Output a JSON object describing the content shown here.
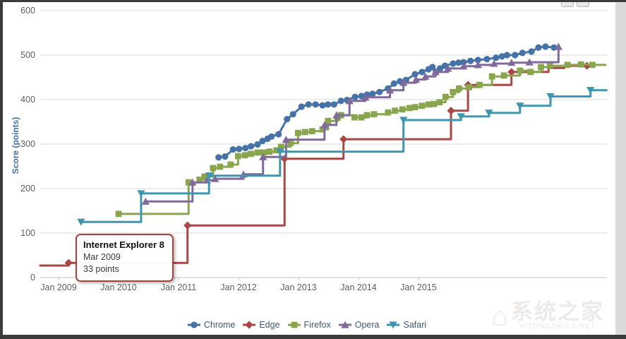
{
  "window": {
    "buttons": [
      {
        "name": "print-button"
      },
      {
        "name": "export-button"
      }
    ]
  },
  "tooltip": {
    "title": "Internet Explorer 8",
    "date_line": "Mar 2009",
    "points_line": "33 points"
  },
  "watermark": {
    "text": "系统之家",
    "subtext": "XITONGZHIJIA.NET",
    "house_icon": "house-icon"
  },
  "chart_data": {
    "type": "line",
    "title": "",
    "xlabel": "",
    "ylabel": "Score (points)",
    "ylim": [
      0,
      600
    ],
    "y_ticks": [
      600,
      500,
      400,
      300,
      200,
      100,
      0
    ],
    "x_tick_labels": [
      "Jan 2009",
      "Jan 2010",
      "Jan 2011",
      "Jan 2012",
      "Jan 2013",
      "Jan 2014",
      "Jan 2015"
    ],
    "x_unit": "months since Jan 2009 (12 per labeled tick)",
    "grid": true,
    "legend_position": "bottom-center",
    "colors": {
      "chrome": "#4572A7",
      "edge": "#AA4643",
      "firefox": "#89A54E",
      "opera": "#80699B",
      "safari": "#3D96AE",
      "grid": "#d8d8d8",
      "axis": "#c0c0c0",
      "legend_text": "#3E576F",
      "axis_title": "#4572A7"
    },
    "series": [
      {
        "name": "Chrome",
        "color": "#4572A7",
        "marker": "circle",
        "step": false,
        "points": [
          [
            32,
            270
          ],
          [
            33.3,
            272
          ],
          [
            34.9,
            288
          ],
          [
            36.1,
            289
          ],
          [
            37.4,
            291
          ],
          [
            38.5,
            295
          ],
          [
            39.8,
            299
          ],
          [
            40.8,
            307
          ],
          [
            41.8,
            312
          ],
          [
            42.6,
            317
          ],
          [
            44,
            322
          ],
          [
            45.7,
            356
          ],
          [
            46.9,
            367
          ],
          [
            48.6,
            384
          ],
          [
            50,
            389
          ],
          [
            51.4,
            389
          ],
          [
            52.8,
            387
          ],
          [
            53.9,
            389
          ],
          [
            55.1,
            389
          ],
          [
            56.5,
            397
          ],
          [
            57.7,
            399
          ],
          [
            59.3,
            406
          ],
          [
            60.6,
            408
          ],
          [
            61.7,
            411
          ],
          [
            62.8,
            413
          ],
          [
            64.2,
            417
          ],
          [
            65.9,
            425
          ],
          [
            67.1,
            436
          ],
          [
            68.3,
            441
          ],
          [
            69.5,
            444
          ],
          [
            71.3,
            457
          ],
          [
            72.7,
            462
          ],
          [
            74,
            468
          ],
          [
            74.8,
            473
          ],
          [
            75.5,
            462
          ],
          [
            76.3,
            470
          ],
          [
            77.3,
            476
          ],
          [
            78.9,
            481
          ],
          [
            80,
            483
          ],
          [
            81,
            484
          ],
          [
            82.4,
            487
          ],
          [
            83.9,
            489
          ],
          [
            85.7,
            491
          ],
          [
            87.5,
            494
          ],
          [
            88.7,
            497
          ],
          [
            89.7,
            500
          ],
          [
            91.3,
            500
          ],
          [
            92.8,
            505
          ],
          [
            94.6,
            508
          ],
          [
            96,
            517
          ],
          [
            97.4,
            519
          ],
          [
            99.1,
            517
          ]
        ]
      },
      {
        "name": "Edge",
        "color": "#AA4643",
        "marker": "diamond",
        "step": true,
        "points": [
          [
            -3.67,
            27,
            0
          ],
          [
            2,
            33
          ],
          [
            25.8,
            117
          ],
          [
            45.2,
            267
          ],
          [
            57,
            311
          ],
          [
            78.5,
            375
          ],
          [
            81.9,
            433
          ],
          [
            90.6,
            462
          ],
          [
            98,
            471,
            0
          ],
          [
            101.2,
            476,
            0
          ],
          [
            105.7,
            476
          ]
        ]
      },
      {
        "name": "Firefox",
        "color": "#89A54E",
        "marker": "square",
        "step": true,
        "points": [
          [
            12,
            143
          ],
          [
            26,
            214
          ],
          [
            28.2,
            220
          ],
          [
            29.2,
            227
          ],
          [
            30.9,
            246
          ],
          [
            32.3,
            249
          ],
          [
            34.4,
            254
          ],
          [
            35.9,
            273
          ],
          [
            37.3,
            275
          ],
          [
            38.5,
            278
          ],
          [
            39.8,
            281
          ],
          [
            41,
            281
          ],
          [
            42.2,
            283
          ],
          [
            43.6,
            286
          ],
          [
            44.5,
            294
          ],
          [
            46.4,
            302
          ],
          [
            47.9,
            325
          ],
          [
            49.3,
            327
          ],
          [
            50.7,
            329
          ],
          [
            52.8,
            333
          ],
          [
            53.9,
            352
          ],
          [
            55.8,
            359
          ],
          [
            56.5,
            365
          ],
          [
            59.2,
            360
          ],
          [
            60.6,
            360
          ],
          [
            61.7,
            365
          ],
          [
            63.1,
            367
          ],
          [
            65.9,
            371
          ],
          [
            67.3,
            375
          ],
          [
            68.8,
            378
          ],
          [
            70.2,
            381
          ],
          [
            71.3,
            383
          ],
          [
            72.7,
            386
          ],
          [
            74,
            389
          ],
          [
            75.1,
            390
          ],
          [
            76.2,
            394
          ],
          [
            77.4,
            406
          ],
          [
            78.9,
            417
          ],
          [
            80.1,
            425
          ],
          [
            82.1,
            428
          ],
          [
            84.2,
            433
          ],
          [
            86.7,
            452
          ],
          [
            89.1,
            454
          ],
          [
            92.3,
            465
          ],
          [
            94.4,
            462
          ],
          [
            96.5,
            473
          ],
          [
            98.3,
            476
          ],
          [
            101.8,
            478
          ],
          [
            104.5,
            479
          ],
          [
            106.8,
            478
          ],
          [
            109.4,
            478,
            0
          ]
        ]
      },
      {
        "name": "Opera",
        "color": "#80699B",
        "marker": "triangle-up",
        "step": true,
        "points": [
          [
            17.4,
            171
          ],
          [
            26.8,
            214
          ],
          [
            29.7,
            219
          ],
          [
            31.3,
            222
          ],
          [
            37,
            232
          ],
          [
            40.9,
            271
          ],
          [
            45.5,
            310
          ],
          [
            53.2,
            343
          ],
          [
            55.6,
            365
          ],
          [
            58.2,
            397
          ],
          [
            61.4,
            405
          ],
          [
            66.3,
            421
          ],
          [
            69,
            438
          ],
          [
            71.5,
            445
          ],
          [
            73.4,
            452
          ],
          [
            75.4,
            462
          ],
          [
            77.9,
            470
          ],
          [
            81,
            475
          ],
          [
            83.9,
            478
          ],
          [
            87.1,
            481
          ],
          [
            90.6,
            483
          ],
          [
            94.2,
            484
          ],
          [
            100,
            519
          ]
        ]
      },
      {
        "name": "Safari",
        "color": "#3D96AE",
        "marker": "triangle-down",
        "step": true,
        "points": [
          [
            4.5,
            125
          ],
          [
            16.5,
            189
          ],
          [
            30.1,
            229
          ],
          [
            44.3,
            283
          ],
          [
            69,
            354
          ],
          [
            80.5,
            362
          ],
          [
            86.1,
            370
          ],
          [
            92.3,
            386
          ],
          [
            98.4,
            407
          ],
          [
            106.4,
            421
          ],
          [
            109.6,
            421,
            0
          ]
        ]
      }
    ],
    "annotation": {
      "tooltip_anchor_series": "Edge",
      "tooltip_anchor": [
        2,
        33
      ]
    }
  }
}
